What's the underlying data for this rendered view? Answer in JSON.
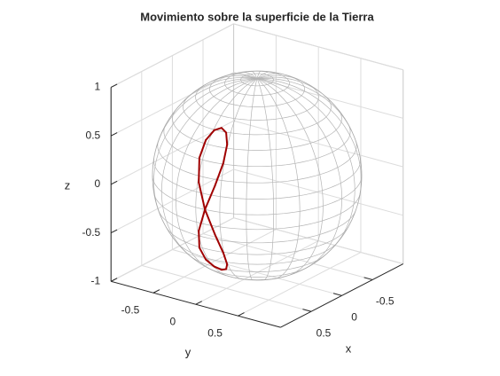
{
  "chart_data": {
    "type": "line3d",
    "title": "Movimiento sobre la superficie de la Tierra",
    "xlabel": "x",
    "ylabel": "y",
    "zlabel": "z",
    "xlim": [
      -1,
      1
    ],
    "ylim": [
      -1,
      1
    ],
    "zlim": [
      -1,
      1
    ],
    "xticks": [
      -0.5,
      0,
      0.5
    ],
    "yticks": [
      -0.5,
      0,
      0.5
    ],
    "zticks": [
      -1,
      -0.5,
      0,
      0.5,
      1
    ],
    "grid": true,
    "surface": "sphere",
    "series": [
      {
        "color": "#a00000",
        "x": [
          0.995,
          0.95,
          0.858,
          0.763,
          0.697,
          0.679,
          0.711,
          0.787,
          0.885,
          0.968,
          0.995,
          0.95,
          0.858,
          0.763,
          0.697,
          0.679,
          0.711,
          0.787,
          0.885,
          0.968,
          0.995
        ],
        "y": [
          0.105,
          0.19,
          0.223,
          0.199,
          0.139,
          0.072,
          0.009,
          -0.035,
          -0.04,
          0.012,
          0.105,
          0.19,
          0.223,
          0.199,
          0.139,
          0.072,
          0.009,
          -0.035,
          -0.04,
          0.012,
          0.105
        ],
        "z": [
          0,
          0.25,
          0.463,
          0.616,
          0.703,
          0.731,
          0.703,
          0.616,
          0.463,
          0.25,
          0,
          -0.25,
          -0.463,
          -0.616,
          -0.703,
          -0.731,
          -0.703,
          -0.616,
          -0.463,
          -0.25,
          0
        ]
      }
    ]
  }
}
